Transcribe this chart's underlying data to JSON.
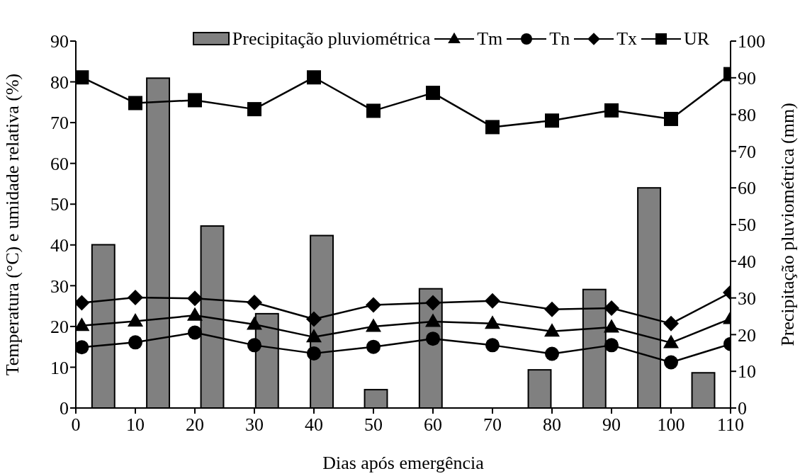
{
  "chart_data": {
    "type": "line",
    "xlabel": "Dias após emergência",
    "ylabel": "Temperatura (°C) e umidade relativa (%)",
    "y2label": "Precipitação pluviométrica (mm)",
    "xlim": [
      0,
      110
    ],
    "xticks": [
      0,
      10,
      20,
      30,
      40,
      50,
      60,
      70,
      80,
      90,
      100,
      110
    ],
    "ylim": [
      0,
      90
    ],
    "yticks": [
      0,
      10,
      20,
      30,
      40,
      50,
      60,
      70,
      80,
      90
    ],
    "y2lim": [
      0,
      100
    ],
    "y2ticks": [
      0,
      10,
      20,
      30,
      40,
      50,
      60,
      70,
      80,
      90,
      100
    ],
    "x": [
      1,
      10,
      20,
      30,
      40,
      50,
      60,
      70,
      80,
      90,
      100,
      110
    ],
    "legend": "top",
    "series": [
      {
        "name": "Precipitação pluviométrica",
        "type": "bar",
        "axis": "y2",
        "color": "#808080",
        "x": [
          4.6,
          13.8,
          22.9,
          32.1,
          41.3,
          50.4,
          59.6,
          77.9,
          87.1,
          96.3,
          105.4
        ],
        "values": [
          44.5,
          89.9,
          49.6,
          25.7,
          47.0,
          5.0,
          32.5,
          10.4,
          32.3,
          60.0,
          9.6
        ]
      },
      {
        "name": "Tm",
        "color": "#000000",
        "marker": "triangle",
        "values": [
          20.2,
          21.3,
          22.7,
          20.5,
          17.4,
          20.0,
          21.2,
          20.7,
          18.8,
          19.8,
          16.0,
          21.9
        ]
      },
      {
        "name": "Tn",
        "color": "#000000",
        "marker": "circle",
        "values": [
          14.9,
          16.1,
          18.5,
          15.4,
          13.4,
          15.0,
          17.0,
          15.4,
          13.3,
          15.4,
          11.2,
          15.7
        ]
      },
      {
        "name": "Tx",
        "color": "#000000",
        "marker": "diamond",
        "values": [
          25.8,
          27.1,
          26.9,
          25.9,
          21.8,
          25.3,
          25.8,
          26.3,
          24.2,
          24.5,
          20.7,
          28.3
        ]
      },
      {
        "name": "UR",
        "color": "#000000",
        "marker": "square",
        "values": [
          81.1,
          74.8,
          75.5,
          73.3,
          81.1,
          72.9,
          77.3,
          68.9,
          70.5,
          73.0,
          70.9,
          81.9
        ]
      }
    ]
  }
}
